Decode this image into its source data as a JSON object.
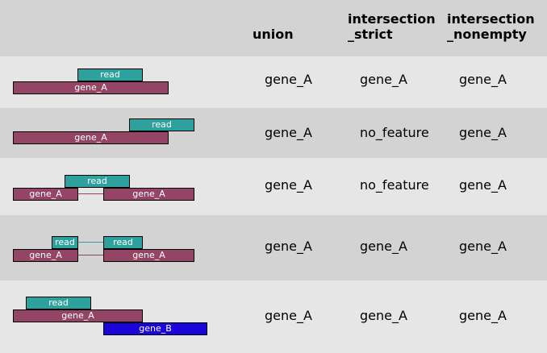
{
  "header": {
    "col1": "union",
    "col2": "intersection\n_strict",
    "col3": "intersection\n_nonempty"
  },
  "rows": [
    {
      "diagram": {
        "read": "read",
        "gene": "gene_A"
      },
      "union": "gene_A",
      "strict": "gene_A",
      "nonempty": "gene_A"
    },
    {
      "diagram": {
        "read": "read",
        "gene": "gene_A"
      },
      "union": "gene_A",
      "strict": "no_feature",
      "nonempty": "gene_A"
    },
    {
      "diagram": {
        "read": "read",
        "gene_left": "gene_A",
        "gene_right": "gene_A"
      },
      "union": "gene_A",
      "strict": "no_feature",
      "nonempty": "gene_A"
    },
    {
      "diagram": {
        "read_left": "read",
        "read_right": "read",
        "gene_left": "gene_A",
        "gene_right": "gene_A"
      },
      "union": "gene_A",
      "strict": "gene_A",
      "nonempty": "gene_A"
    },
    {
      "diagram": {
        "read": "read",
        "gene_a": "gene_A",
        "gene_b": "gene_B"
      },
      "union": "gene_A",
      "strict": "gene_A",
      "nonempty": "gene_A"
    }
  ],
  "colors": {
    "read": "#2ea19e",
    "gene_A": "#944566",
    "gene_B": "#1a05d9",
    "row_light": "#e6e6e6",
    "row_dark": "#d3d3d3"
  }
}
